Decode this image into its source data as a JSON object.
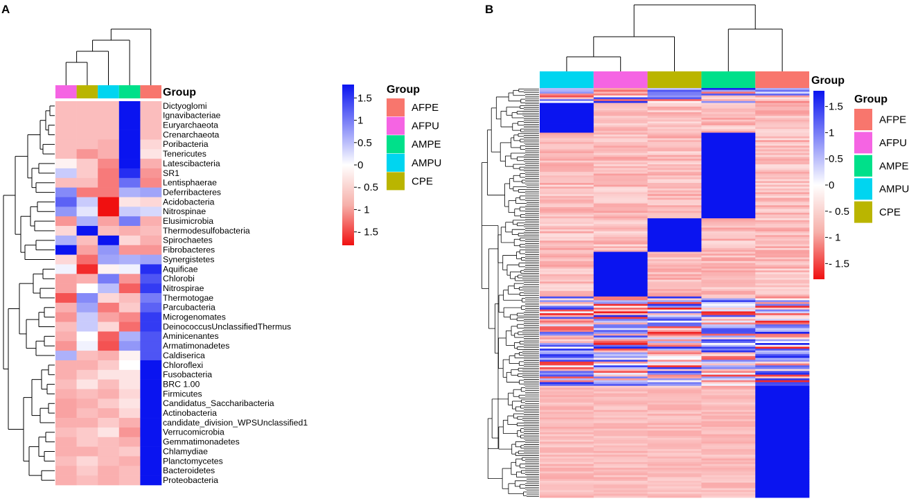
{
  "chart_data": [
    {
      "type": "heatmap",
      "panel_label": "A",
      "group_annotation_title": "Group",
      "columns": [
        "AFPU",
        "CPE",
        "AMPU",
        "AMPE",
        "AFPE"
      ],
      "rows": [
        "Dictyoglomi",
        "Ignavibacteriae",
        "Euryarchaeota",
        "Crenarchaeota",
        "Poribacteria",
        "Tenericutes",
        "Latescibacteria",
        "SR1",
        "Lentisphaerae",
        "Deferribacteres",
        "Acidobacteria",
        "Nitrospinae",
        "Elusimicrobia",
        "Thermodesulfobacteria",
        "Spirochaetes",
        "Fibrobacteres",
        "Synergistetes",
        "Aquificae",
        "Chlorobi",
        "Nitrospirae",
        "Thermotogae",
        "Parcubacteria",
        "Microgenomates",
        "DeinococcusUnclassifiedThermus",
        "Aminicenantes",
        "Armatimonadetes",
        "Caldiserica",
        "Chloroflexi",
        "Fusobacteria",
        "BRC 1.00",
        "Firmicutes",
        "Candidatus_Saccharibacteria",
        "Actinobacteria",
        "candidate_division_WPSUnclassified1",
        "Verrucomicrobia",
        "Gemmatimonadetes",
        "Chlamydiae",
        "Planctomycetes",
        "Bacteroidetes",
        "Proteobacteria"
      ],
      "values": [
        [
          -0.5,
          -0.5,
          -0.5,
          1.8,
          -0.5
        ],
        [
          -0.5,
          -0.5,
          -0.5,
          1.8,
          -0.5
        ],
        [
          -0.5,
          -0.5,
          -0.5,
          1.8,
          -0.5
        ],
        [
          -0.5,
          -0.5,
          -0.5,
          1.8,
          -0.5
        ],
        [
          -0.5,
          -0.5,
          -0.6,
          1.8,
          -0.3
        ],
        [
          -0.5,
          -0.8,
          -0.6,
          1.8,
          -0.2
        ],
        [
          -0.1,
          -0.4,
          -0.9,
          1.8,
          -0.6
        ],
        [
          0.4,
          -0.4,
          -1.0,
          1.6,
          -0.8
        ],
        [
          -0.5,
          -0.5,
          -1.0,
          1.1,
          -0.9
        ],
        [
          0.9,
          -1.0,
          -1.0,
          0.6,
          0.7
        ],
        [
          1.2,
          0.4,
          -1.8,
          -0.2,
          -0.3
        ],
        [
          0.8,
          0.2,
          -1.8,
          0.4,
          0.3
        ],
        [
          -0.8,
          0.6,
          -0.7,
          1.0,
          -0.6
        ],
        [
          -0.3,
          1.8,
          -0.5,
          -0.6,
          -0.5
        ],
        [
          0.6,
          -0.5,
          1.8,
          -0.3,
          -0.6
        ],
        [
          1.8,
          -0.7,
          0.8,
          -0.8,
          -0.8
        ],
        [
          -0.3,
          -1.1,
          0.7,
          0.6,
          0.7
        ],
        [
          0.1,
          -1.6,
          -0.1,
          0.1,
          1.6
        ],
        [
          -0.7,
          -0.6,
          1.0,
          -0.8,
          1.3
        ],
        [
          -0.7,
          0.0,
          0.5,
          -1.2,
          1.5
        ],
        [
          -1.3,
          0.9,
          -0.3,
          -0.5,
          1.0
        ],
        [
          -0.6,
          0.7,
          -1.0,
          -0.4,
          1.2
        ],
        [
          -0.8,
          0.4,
          -0.7,
          -0.9,
          1.5
        ],
        [
          -0.5,
          0.4,
          -0.3,
          -1.1,
          1.5
        ],
        [
          -0.6,
          0.0,
          -1.2,
          0.6,
          1.3
        ],
        [
          -0.8,
          0.1,
          -1.3,
          0.8,
          1.3
        ],
        [
          0.6,
          -0.5,
          -0.6,
          -0.1,
          1.3
        ],
        [
          -0.6,
          -0.6,
          -0.4,
          0.0,
          1.8
        ],
        [
          -0.6,
          -0.4,
          -0.2,
          -0.2,
          1.8
        ],
        [
          -0.5,
          -0.2,
          -0.5,
          -0.2,
          1.8
        ],
        [
          -0.6,
          -0.5,
          -0.6,
          -0.3,
          1.8
        ],
        [
          -0.7,
          -0.6,
          -0.4,
          -0.2,
          1.8
        ],
        [
          -0.7,
          -0.5,
          -0.6,
          -0.3,
          1.8
        ],
        [
          -0.6,
          -0.6,
          -0.4,
          -0.6,
          1.8
        ],
        [
          -0.5,
          -0.4,
          -0.2,
          -0.8,
          1.8
        ],
        [
          -0.6,
          -0.4,
          -0.5,
          -0.6,
          1.8
        ],
        [
          -0.6,
          -0.6,
          -0.5,
          -0.4,
          1.8
        ],
        [
          -0.5,
          -0.3,
          -0.5,
          -0.6,
          1.8
        ],
        [
          -0.6,
          -0.4,
          -0.6,
          -0.5,
          1.8
        ],
        [
          -0.6,
          -0.5,
          -0.6,
          -0.5,
          1.8
        ]
      ],
      "color_scale": {
        "min": -1.8,
        "max": 1.8
      }
    },
    {
      "type": "heatmap",
      "panel_label": "B",
      "group_annotation_title": "Group",
      "columns": [
        "AMPU",
        "AFPU",
        "CPE",
        "AMPE",
        "AFPE"
      ],
      "description_rows": 220,
      "blocks": [
        {
          "rows_from": 0,
          "rows_to": 8,
          "pattern": "mixed"
        },
        {
          "rows_from": 8,
          "rows_to": 24,
          "high_column": "AMPU"
        },
        {
          "rows_from": 24,
          "rows_to": 70,
          "high_column": "AMPE"
        },
        {
          "rows_from": 70,
          "rows_to": 88,
          "high_column": "CPE"
        },
        {
          "rows_from": 88,
          "rows_to": 112,
          "high_column": "AFPU"
        },
        {
          "rows_from": 112,
          "rows_to": 160,
          "pattern": "mixed"
        },
        {
          "rows_from": 160,
          "rows_to": 220,
          "high_column": "AFPE"
        }
      ],
      "color_scale": {
        "min": -1.8,
        "max": 1.8
      }
    }
  ],
  "legend": {
    "colorbar_ticks": [
      "1.5",
      "1",
      "0.5",
      "0",
      "- 0.5",
      "- 1",
      "- 1.5"
    ],
    "colorbar_tick_values": [
      1.5,
      1,
      0.5,
      0,
      -0.5,
      -1,
      -1.5
    ],
    "group_title": "Group",
    "groups": [
      {
        "name": "AFPE",
        "color": "#F8766D"
      },
      {
        "name": "AFPU",
        "color": "#F564E3"
      },
      {
        "name": "AMPE",
        "color": "#00E08A"
      },
      {
        "name": "AMPU",
        "color": "#00D5F0"
      },
      {
        "name": "CPE",
        "color": "#BAB500"
      }
    ]
  },
  "colors": {
    "high": "#0A14F0",
    "mid": "#FFFFFF",
    "low": "#F01010"
  }
}
